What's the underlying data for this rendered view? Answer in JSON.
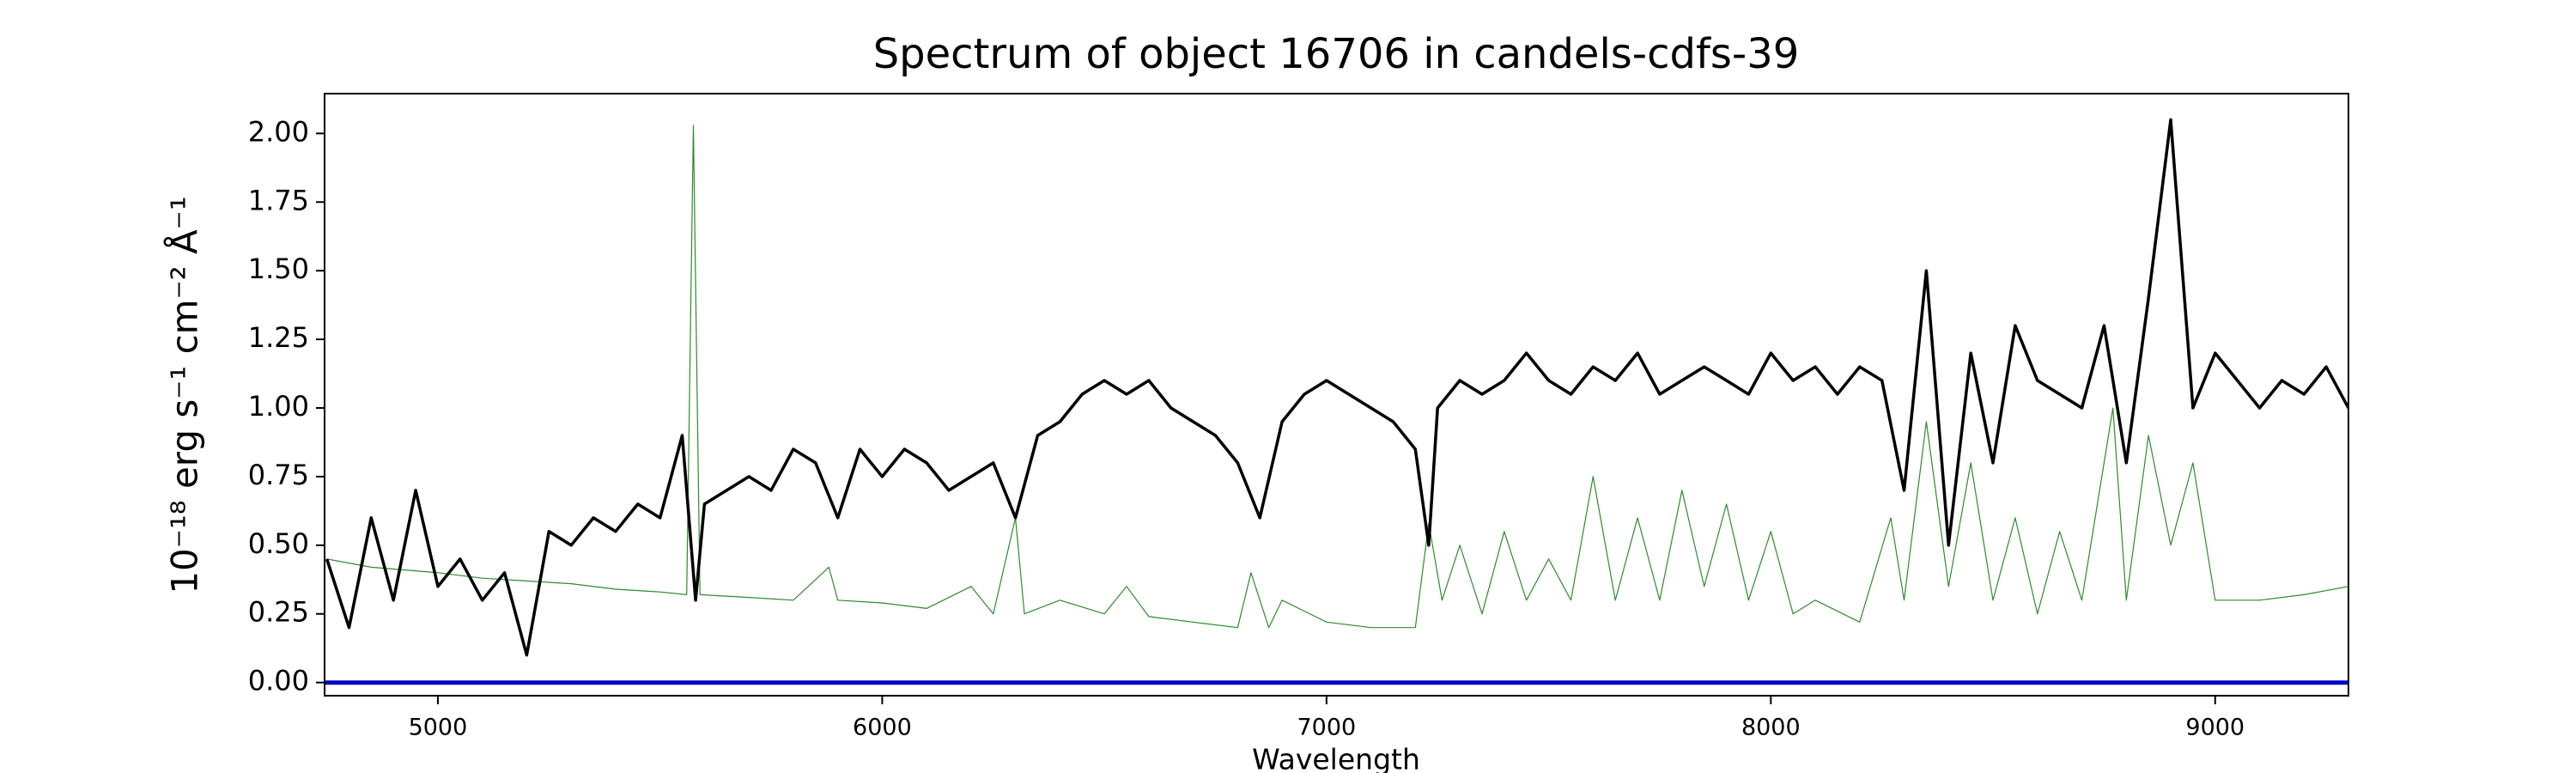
{
  "chart_data": {
    "type": "line",
    "title": "Spectrum of object 16706 in candels-cdfs-39",
    "xlabel": "Wavelength",
    "ylabel": "10⁻¹⁸ erg s⁻¹ cm⁻² Å⁻¹",
    "xlim": [
      4745,
      9300
    ],
    "ylim": [
      -0.048,
      2.145
    ],
    "xticks": [
      5000,
      6000,
      7000,
      8000,
      9000
    ],
    "yticks": [
      {
        "value": 0,
        "label": "0.00"
      },
      {
        "value": 0.25,
        "label": "0.25"
      },
      {
        "value": 0.5,
        "label": "0.50"
      },
      {
        "value": 0.75,
        "label": "0.75"
      },
      {
        "value": 1,
        "label": "1.00"
      },
      {
        "value": 1.25,
        "label": "1.25"
      },
      {
        "value": 1.5,
        "label": "1.50"
      },
      {
        "value": 1.75,
        "label": "1.75"
      },
      {
        "value": 2,
        "label": "2.00"
      }
    ],
    "series": [
      {
        "color": "#2e8b2e",
        "width": 1.2,
        "x": [
          4750,
          4850,
          5000,
          5100,
          5200,
          5300,
          5400,
          5500,
          5560,
          5575,
          5590,
          5700,
          5800,
          5880,
          5900,
          6000,
          6100,
          6200,
          6250,
          6300,
          6320,
          6400,
          6500,
          6550,
          6600,
          6700,
          6800,
          6830,
          6870,
          6900,
          7000,
          7100,
          7200,
          7230,
          7260,
          7300,
          7350,
          7400,
          7450,
          7500,
          7550,
          7600,
          7650,
          7700,
          7750,
          7800,
          7850,
          7900,
          7950,
          8000,
          8050,
          8100,
          8200,
          8270,
          8300,
          8350,
          8400,
          8450,
          8500,
          8550,
          8600,
          8650,
          8700,
          8770,
          8800,
          8850,
          8900,
          8950,
          9000,
          9100,
          9200,
          9300
        ],
        "values": [
          0.45,
          0.42,
          0.4,
          0.38,
          0.37,
          0.36,
          0.34,
          0.33,
          0.32,
          2.03,
          0.32,
          0.31,
          0.3,
          0.42,
          0.3,
          0.29,
          0.27,
          0.35,
          0.25,
          0.6,
          0.25,
          0.3,
          0.25,
          0.35,
          0.24,
          0.22,
          0.2,
          0.4,
          0.2,
          0.3,
          0.22,
          0.2,
          0.2,
          0.58,
          0.3,
          0.5,
          0.25,
          0.55,
          0.3,
          0.45,
          0.3,
          0.75,
          0.3,
          0.6,
          0.3,
          0.7,
          0.35,
          0.65,
          0.3,
          0.55,
          0.25,
          0.3,
          0.22,
          0.6,
          0.3,
          0.95,
          0.35,
          0.8,
          0.3,
          0.6,
          0.25,
          0.55,
          0.3,
          1.0,
          0.3,
          0.9,
          0.5,
          0.8,
          0.3,
          0.3,
          0.32,
          0.35
        ]
      },
      {
        "color": "#000000",
        "width": 3.5,
        "x": [
          4750,
          4800,
          4850,
          4900,
          4950,
          5000,
          5050,
          5100,
          5150,
          5200,
          5250,
          5300,
          5350,
          5400,
          5450,
          5500,
          5550,
          5580,
          5600,
          5650,
          5700,
          5750,
          5800,
          5850,
          5900,
          5950,
          6000,
          6050,
          6100,
          6150,
          6200,
          6250,
          6300,
          6350,
          6400,
          6450,
          6500,
          6550,
          6600,
          6650,
          6700,
          6750,
          6800,
          6850,
          6900,
          6950,
          7000,
          7050,
          7100,
          7150,
          7200,
          7230,
          7250,
          7300,
          7350,
          7400,
          7450,
          7500,
          7550,
          7600,
          7650,
          7700,
          7750,
          7800,
          7850,
          7900,
          7950,
          8000,
          8050,
          8100,
          8150,
          8200,
          8250,
          8300,
          8350,
          8400,
          8450,
          8500,
          8550,
          8600,
          8650,
          8700,
          8750,
          8800,
          8850,
          8900,
          8950,
          9000,
          9050,
          9100,
          9150,
          9200,
          9250,
          9300
        ],
        "values": [
          0.45,
          0.2,
          0.6,
          0.3,
          0.7,
          0.35,
          0.45,
          0.3,
          0.4,
          0.1,
          0.55,
          0.5,
          0.6,
          0.55,
          0.65,
          0.6,
          0.9,
          0.3,
          0.65,
          0.7,
          0.75,
          0.7,
          0.85,
          0.8,
          0.6,
          0.85,
          0.75,
          0.85,
          0.8,
          0.7,
          0.75,
          0.8,
          0.6,
          0.9,
          0.95,
          1.05,
          1.1,
          1.05,
          1.1,
          1.0,
          0.95,
          0.9,
          0.8,
          0.6,
          0.95,
          1.05,
          1.1,
          1.05,
          1.0,
          0.95,
          0.85,
          0.5,
          1.0,
          1.1,
          1.05,
          1.1,
          1.2,
          1.1,
          1.05,
          1.15,
          1.1,
          1.2,
          1.05,
          1.1,
          1.15,
          1.1,
          1.05,
          1.2,
          1.1,
          1.15,
          1.05,
          1.15,
          1.1,
          0.7,
          1.5,
          0.5,
          1.2,
          0.8,
          1.3,
          1.1,
          1.05,
          1.0,
          1.3,
          0.8,
          1.4,
          2.05,
          1.0,
          1.2,
          1.1,
          1.0,
          1.1,
          1.05,
          1.15,
          1.0
        ]
      },
      {
        "color": "#0000cc",
        "width": 5,
        "x": [
          4745,
          9300
        ],
        "values": [
          0,
          0
        ]
      }
    ]
  }
}
